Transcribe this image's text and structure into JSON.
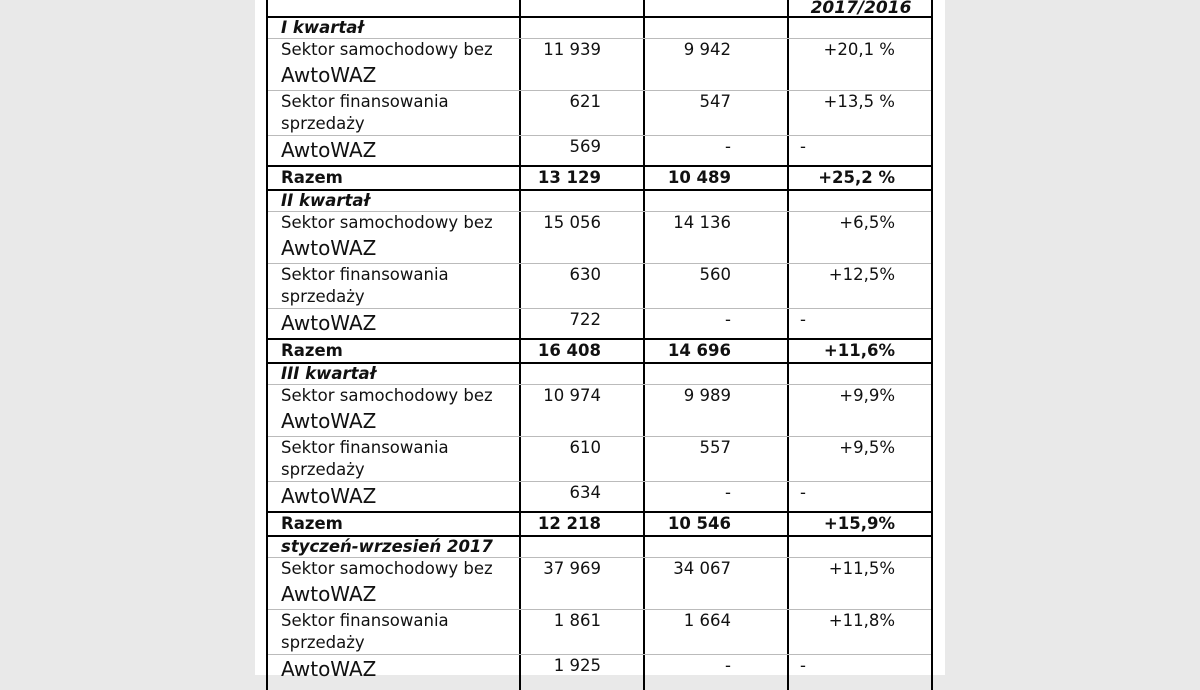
{
  "header": {
    "change_col": "2017/2016"
  },
  "sections": [
    {
      "title": "I kwartał",
      "rows": [
        {
          "label1": "Sektor samochodowy bez",
          "label2": "AwtoWAZ",
          "v2017": "11 939",
          "v2016": "9 942",
          "change": "+20,1 %"
        },
        {
          "label1": "Sektor finansowania",
          "label2": "sprzedaży",
          "v2017": "621",
          "v2016": "547",
          "change": "+13,5 %"
        },
        {
          "label1": "AwtoWAZ",
          "v2017": "569",
          "v2016": "-",
          "change": "-"
        }
      ],
      "total": {
        "label": "Razem",
        "v2017": "13 129",
        "v2016": "10 489",
        "change": "+25,2 %"
      }
    },
    {
      "title": "II kwartał",
      "rows": [
        {
          "label1": "Sektor samochodowy bez",
          "label2": "AwtoWAZ",
          "v2017": "15 056",
          "v2016": "14 136",
          "change": "+6,5%"
        },
        {
          "label1": "Sektor finansowania",
          "label2": "sprzedaży",
          "v2017": "630",
          "v2016": "560",
          "change": "+12,5%"
        },
        {
          "label1": "AwtoWAZ",
          "v2017": "722",
          "v2016": "-",
          "change": "-"
        }
      ],
      "total": {
        "label": "Razem",
        "v2017": "16 408",
        "v2016": "14 696",
        "change": "+11,6%"
      }
    },
    {
      "title": "III kwartał",
      "rows": [
        {
          "label1": "Sektor samochodowy bez",
          "label2": "AwtoWAZ",
          "v2017": "10 974",
          "v2016": "9 989",
          "change": "+9,9%"
        },
        {
          "label1": "Sektor finansowania",
          "label2": "sprzedaży",
          "v2017": "610",
          "v2016": "557",
          "change": "+9,5%"
        },
        {
          "label1": "AwtoWAZ",
          "v2017": "634",
          "v2016": "-",
          "change": "-"
        }
      ],
      "total": {
        "label": "Razem",
        "v2017": "12 218",
        "v2016": "10 546",
        "change": "+15,9%"
      }
    },
    {
      "title": "styczeń-wrzesień 2017",
      "rows": [
        {
          "label1": "Sektor samochodowy bez",
          "label2": "AwtoWAZ",
          "v2017": "37 969",
          "v2016": "34 067",
          "change": "+11,5%"
        },
        {
          "label1": "Sektor finansowania",
          "label2": "sprzedaży",
          "v2017": "1 861",
          "v2016": "1 664",
          "change": "+11,8%"
        },
        {
          "label1": "AwtoWAZ",
          "v2017": "1 925",
          "v2016": "-",
          "change": "-"
        }
      ]
    }
  ]
}
